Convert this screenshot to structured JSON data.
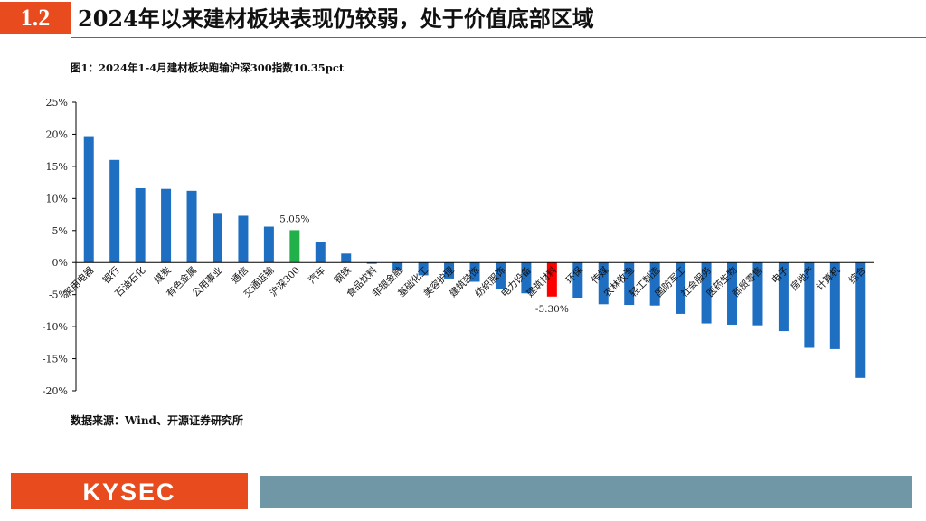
{
  "header": {
    "section_number": "1.2",
    "title": "2024年以来建材板块表现仍较弱，处于价值底部区域"
  },
  "figure": {
    "title": "图1：2024年1-4月建材板块跑输沪深300指数10.35pct",
    "source": "数据来源：Wind、开源证券研究所"
  },
  "footer": {
    "logo_text": "KYSEC"
  },
  "chart_data": {
    "type": "bar",
    "ylim": [
      -20,
      25
    ],
    "yticks": [
      25,
      20,
      15,
      10,
      5,
      0,
      -5,
      -10,
      -15,
      -20
    ],
    "ytick_labels": [
      "25%",
      "20%",
      "15%",
      "10%",
      "5%",
      "0%",
      "-5%",
      "-10%",
      "-15%",
      "-20%"
    ],
    "categories": [
      "家用电器",
      "银行",
      "石油石化",
      "煤炭",
      "有色金属",
      "公用事业",
      "通信",
      "交通运输",
      "沪深300",
      "汽车",
      "钢铁",
      "食品饮料",
      "非银金融",
      "基础化工",
      "美容护理",
      "建筑装饰",
      "纺织服饰",
      "电力设备",
      "建筑材料",
      "环保",
      "传媒",
      "农林牧渔",
      "轻工制造",
      "国防军工",
      "社会服务",
      "医药生物",
      "商贸零售",
      "电子",
      "房地产",
      "计算机",
      "综合"
    ],
    "values": [
      19.7,
      16.0,
      11.6,
      11.5,
      11.2,
      7.6,
      7.3,
      5.6,
      5.05,
      3.2,
      1.4,
      -0.2,
      -1.2,
      -2.0,
      -2.5,
      -3.0,
      -4.2,
      -4.8,
      -5.3,
      -5.6,
      -6.5,
      -6.6,
      -6.7,
      -8.0,
      -9.5,
      -9.7,
      -9.8,
      -10.7,
      -13.3,
      -13.5,
      -18.0
    ],
    "colors": {
      "default": "#1E6FC1",
      "benchmark": "#22B04B",
      "highlight": "#FF0000"
    },
    "highlights": [
      {
        "category": "沪深300",
        "color": "benchmark",
        "label": "5.05%"
      },
      {
        "category": "建筑材料",
        "color": "highlight",
        "label": "-5.30%"
      }
    ]
  }
}
